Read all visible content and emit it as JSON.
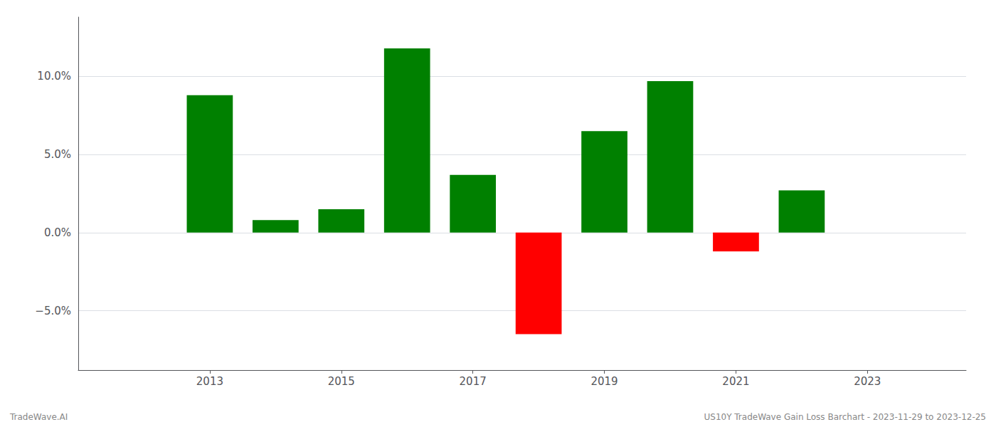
{
  "chart_data": {
    "type": "bar",
    "x": [
      2013,
      2014,
      2015,
      2016,
      2017,
      2018,
      2019,
      2020,
      2021,
      2022
    ],
    "values": [
      0.088,
      0.008,
      0.015,
      0.118,
      0.037,
      -0.065,
      0.065,
      0.097,
      -0.012,
      0.027
    ],
    "colors": [
      "#008000",
      "#008000",
      "#008000",
      "#008000",
      "#008000",
      "#ff0000",
      "#008000",
      "#008000",
      "#ff0000",
      "#008000"
    ],
    "xlim": [
      2011.0,
      2024.5
    ],
    "xticks": [
      2013,
      2015,
      2017,
      2019,
      2021,
      2023
    ],
    "ylim": [
      -0.088,
      0.138
    ],
    "yticks": [
      {
        "value": -0.05,
        "label": "−5.0%"
      },
      {
        "value": 0.0,
        "label": "0.0%"
      },
      {
        "value": 0.05,
        "label": "5.0%"
      },
      {
        "value": 0.1,
        "label": "10.0%"
      }
    ],
    "grid": true,
    "annotations": [
      "TradeWave.AI",
      "US10Y TradeWave Gain Loss Barchart - 2023-11-29 to 2023-12-25"
    ]
  }
}
